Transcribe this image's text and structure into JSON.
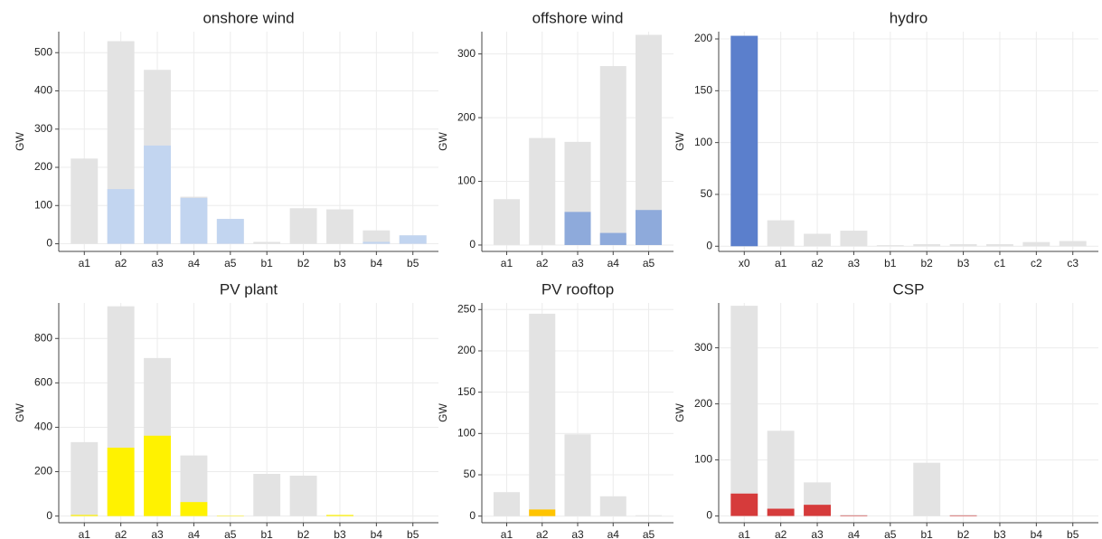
{
  "chart_data": [
    {
      "type": "bar",
      "barmode": "overlay",
      "title": "onshore wind",
      "ylabel": "GW",
      "grid": true,
      "categories": [
        "a1",
        "a2",
        "a3",
        "a4",
        "a5",
        "b1",
        "b2",
        "b3",
        "b4",
        "b5"
      ],
      "series": [
        {
          "color": "#e3e3e3",
          "values": [
            223,
            530,
            455,
            123,
            65,
            5,
            93,
            90,
            35,
            22
          ]
        },
        {
          "color": "#c2d5f0",
          "values": [
            0,
            143,
            257,
            120,
            65,
            0,
            0,
            0,
            5,
            22
          ]
        }
      ],
      "ylim": [
        -20,
        555
      ],
      "yticks": [
        0,
        100,
        200,
        300,
        400,
        500
      ]
    },
    {
      "type": "bar",
      "barmode": "overlay",
      "title": "offshore wind",
      "ylabel": "GW",
      "grid": true,
      "categories": [
        "a1",
        "a2",
        "a3",
        "a4",
        "a5"
      ],
      "series": [
        {
          "color": "#e3e3e3",
          "values": [
            72,
            168,
            162,
            281,
            330
          ]
        },
        {
          "color": "#8eaadb",
          "values": [
            0,
            0,
            52,
            19,
            55
          ]
        }
      ],
      "ylim": [
        -10,
        335
      ],
      "yticks": [
        0,
        100,
        200,
        300
      ]
    },
    {
      "type": "bar",
      "barmode": "overlay",
      "title": "hydro",
      "ylabel": "GW",
      "grid": true,
      "categories": [
        "x0",
        "a1",
        "a2",
        "a3",
        "b1",
        "b2",
        "b3",
        "c1",
        "c2",
        "c3"
      ],
      "series": [
        {
          "color": "#e3e3e3",
          "values": [
            203,
            25,
            12,
            15,
            1,
            2,
            2,
            2,
            4,
            5
          ]
        },
        {
          "color": "#5b7fcc",
          "values": [
            203,
            0,
            0,
            0,
            0,
            0,
            0,
            0,
            0,
            0
          ]
        }
      ],
      "ylim": [
        -5,
        207
      ],
      "yticks": [
        0,
        50,
        100,
        150,
        200
      ]
    },
    {
      "type": "bar",
      "barmode": "overlay",
      "title": "PV plant",
      "ylabel": "GW",
      "grid": true,
      "categories": [
        "a1",
        "a2",
        "a3",
        "a4",
        "a5",
        "b1",
        "b2",
        "b3",
        "b4",
        "b5"
      ],
      "series": [
        {
          "color": "#e3e3e3",
          "values": [
            333,
            945,
            712,
            273,
            0,
            190,
            182,
            5,
            0,
            0
          ]
        },
        {
          "color": "#fff200",
          "values": [
            5,
            308,
            362,
            63,
            2,
            0,
            0,
            5,
            0,
            0
          ]
        }
      ],
      "ylim": [
        -30,
        960
      ],
      "yticks": [
        0,
        200,
        400,
        600,
        800
      ]
    },
    {
      "type": "bar",
      "barmode": "overlay",
      "title": "PV rooftop",
      "ylabel": "GW",
      "grid": true,
      "categories": [
        "a1",
        "a2",
        "a3",
        "a4",
        "a5"
      ],
      "series": [
        {
          "color": "#e3e3e3",
          "values": [
            29,
            245,
            99,
            24,
            1
          ]
        },
        {
          "color": "#ffc400",
          "values": [
            0,
            8,
            0,
            0,
            0
          ]
        }
      ],
      "ylim": [
        -8,
        258
      ],
      "yticks": [
        0,
        50,
        100,
        150,
        200,
        250
      ]
    },
    {
      "type": "bar",
      "barmode": "overlay",
      "title": "CSP",
      "ylabel": "GW",
      "grid": true,
      "categories": [
        "a1",
        "a2",
        "a3",
        "a4",
        "a5",
        "b1",
        "b2",
        "b3",
        "b4",
        "b5"
      ],
      "series": [
        {
          "color": "#e3e3e3",
          "values": [
            375,
            152,
            60,
            2,
            0,
            95,
            2,
            0,
            0,
            0
          ]
        },
        {
          "color": "#d63b3b",
          "values": [
            40,
            13,
            20,
            1,
            0,
            0,
            1,
            0,
            0,
            0
          ]
        }
      ],
      "ylim": [
        -12,
        380
      ],
      "yticks": [
        0,
        100,
        200,
        300
      ]
    }
  ]
}
